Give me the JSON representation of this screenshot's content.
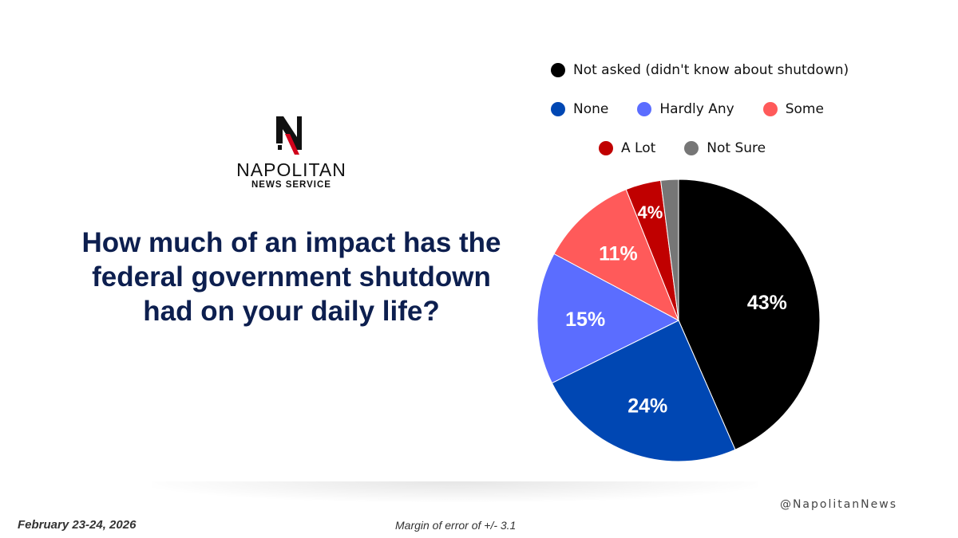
{
  "brand": {
    "name": "NAPOLITAN",
    "subtitle": "NEWS SERVICE",
    "colors": {
      "primary": "#111111",
      "accent": "#d0021b"
    }
  },
  "question": "How much of an impact has the federal government shutdown had on your daily life?",
  "footer": {
    "date": "February 23-24, 2026",
    "margin": "Margin of error of +/- 3.1",
    "handle": "@NapolitanNews"
  },
  "chart_data": {
    "type": "pie",
    "title": "How much of an impact has the federal government shutdown had on your daily life?",
    "categories": [
      "Not asked (didn't know about shutdown)",
      "None",
      "Hardly Any",
      "Some",
      "A Lot",
      "Not Sure"
    ],
    "values": [
      43,
      24,
      15,
      11,
      4,
      2
    ],
    "labels": [
      "43%",
      "24%",
      "15%",
      "11%",
      "4%",
      ""
    ],
    "colors": [
      "#000000",
      "#0047b3",
      "#5b6dff",
      "#ff5a5a",
      "#c00000",
      "#767676"
    ],
    "legend_position": "top",
    "start": "12 o'clock, clockwise"
  }
}
